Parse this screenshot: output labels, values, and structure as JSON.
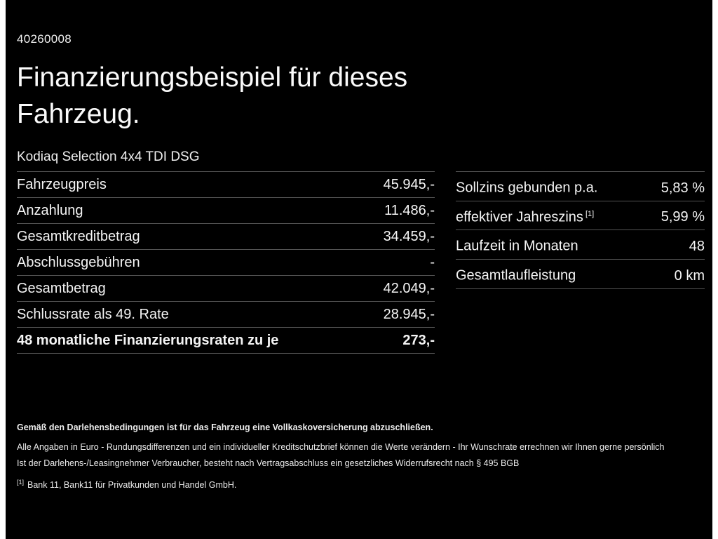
{
  "header": {
    "doc_number": "40260008",
    "title_line1": "Finanzierungsbeispiel für dieses",
    "title_line2": "Fahrzeug.",
    "vehicle": "Kodiaq Selection 4x4 TDI DSG"
  },
  "finance_table": {
    "rows": [
      {
        "label": "Fahrzeugpreis",
        "value": "45.945,-"
      },
      {
        "label": "Anzahlung",
        "value": "11.486,-"
      },
      {
        "label": "Gesamtkreditbetrag",
        "value": "34.459,-"
      },
      {
        "label": "Abschlussgebühren",
        "value": "-"
      },
      {
        "label": "Gesamtbetrag",
        "value": "42.049,-"
      },
      {
        "label": "Schlussrate als 49. Rate",
        "value": "28.945,-"
      },
      {
        "label": "48 monatliche Finanzierungsraten zu je",
        "value": "273,-"
      }
    ]
  },
  "conditions_table": {
    "rows": [
      {
        "label": "Sollzins gebunden p.a.",
        "sup": "",
        "value": "5,83 %"
      },
      {
        "label": "effektiver Jahreszins",
        "sup": "[1]",
        "value": "5,99 %"
      },
      {
        "label": "Laufzeit in Monaten",
        "sup": "",
        "value": "48"
      },
      {
        "label": "Gesamtlaufleistung",
        "sup": "",
        "value": "0 km"
      }
    ]
  },
  "footer": {
    "bold_note": "Gemäß den Darlehensbedingungen ist für das Fahrzeug eine Vollkaskoversicherung abzuschließen.",
    "note1": "Alle Angaben in Euro - Rundungsdifferenzen und ein individueller Kreditschutzbrief können die Werte verändern - Ihr Wunschrate errechnen wir Ihnen gerne persönlich",
    "note2": "Ist der Darlehens-/Leasingnehmer Verbraucher, besteht nach Vertragsabschluss ein gesetzliches Widerrufsrecht nach § 495 BGB",
    "footnote_marker": "[1]",
    "footnote_text": "Bank 11, Bank11 für Privatkunden und Handel GmbH."
  },
  "colors": {
    "background": "#000000",
    "text": "#f4f4f4",
    "divider": "#535353",
    "side_bars": "#ffffff"
  }
}
